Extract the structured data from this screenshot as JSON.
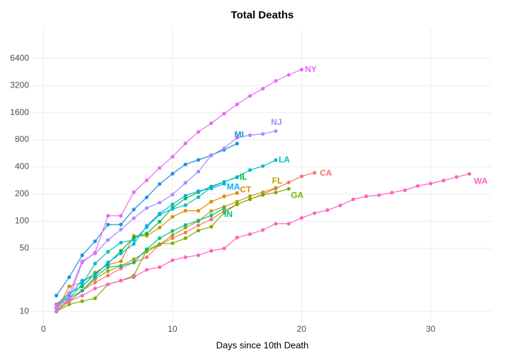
{
  "chart_data": {
    "type": "line",
    "title": "Total Deaths",
    "x_label": "Days since 10th Death",
    "log_y": true,
    "grid": true,
    "xlim": [
      -0.9,
      34.7
    ],
    "xticks": [
      0,
      10,
      20,
      30
    ],
    "ylim": [
      7.4,
      13800
    ],
    "yticks": [
      10,
      50,
      100,
      200,
      400,
      800,
      1600,
      3200,
      6400
    ],
    "series": [
      {
        "name": "CA",
        "color": "#F8766D",
        "x": [
          1,
          2,
          3,
          4,
          5,
          6,
          7,
          8,
          9,
          10,
          11,
          12,
          13,
          14,
          15,
          16,
          17,
          18,
          19,
          20,
          21
        ],
        "values": [
          11,
          13,
          17,
          21,
          25,
          30,
          35,
          40,
          55,
          65,
          75,
          90,
          105,
          130,
          155,
          175,
          200,
          230,
          270,
          315,
          345
        ]
      },
      {
        "name": "CT",
        "color": "#DE8C00",
        "x": [
          1,
          2,
          3,
          4,
          5,
          6,
          7,
          8,
          9,
          10,
          11,
          12,
          13,
          14,
          15
        ],
        "values": [
          10,
          19,
          21,
          27,
          33,
          36,
          69,
          69,
          85,
          112,
          131,
          131,
          165,
          189,
          206
        ]
      },
      {
        "name": "FL",
        "color": "#B79F00",
        "x": [
          1,
          2,
          3,
          4,
          5,
          6,
          7,
          8,
          9,
          10,
          11,
          12,
          13,
          14,
          15,
          16,
          17,
          18
        ],
        "values": [
          10,
          13,
          17,
          23,
          28,
          32,
          38,
          46,
          55,
          70,
          85,
          100,
          130,
          145,
          165,
          190,
          210,
          235
        ]
      },
      {
        "name": "GA",
        "color": "#7CAE00",
        "x": [
          1,
          2,
          3,
          4,
          5,
          6,
          7,
          8,
          9,
          10,
          11,
          12,
          13,
          14,
          15,
          16,
          17,
          18,
          19
        ],
        "values": [
          10,
          12,
          13,
          14,
          20,
          22,
          25,
          48,
          56,
          57,
          65,
          79,
          87,
          125,
          154,
          176,
          196,
          208,
          229
        ]
      },
      {
        "name": "IL",
        "color": "#00BA38",
        "x": [
          1,
          2,
          3,
          4,
          5,
          6,
          7,
          8,
          9,
          10,
          11,
          12,
          13,
          14,
          15
        ],
        "values": [
          12,
          16,
          19,
          26,
          34,
          47,
          66,
          73,
          99,
          141,
          179,
          210,
          243,
          274,
          307
        ]
      },
      {
        "name": "IN",
        "color": "#00C08B",
        "x": [
          1,
          2,
          3,
          4,
          5,
          6,
          7,
          8,
          9,
          10,
          11,
          12,
          13,
          14
        ],
        "values": [
          12,
          14,
          17,
          24,
          31,
          32,
          35,
          49,
          65,
          78,
          91,
          102,
          116,
          139
        ]
      },
      {
        "name": "LA",
        "color": "#00BFC4",
        "x": [
          1,
          2,
          3,
          4,
          5,
          6,
          7,
          8,
          9,
          10,
          11,
          12,
          13,
          14,
          15,
          16,
          17,
          18
        ],
        "values": [
          10,
          14,
          20,
          34,
          46,
          58,
          62,
          86,
          119,
          137,
          151,
          185,
          239,
          273,
          310,
          370,
          409,
          477
        ]
      },
      {
        "name": "MA",
        "color": "#00B4F0",
        "x": [
          1,
          2,
          3,
          4,
          5,
          6,
          7,
          8,
          9,
          10,
          11,
          12,
          13,
          14
        ],
        "values": [
          11,
          15,
          22,
          25,
          35,
          44,
          56,
          89,
          122,
          154,
          192,
          216,
          231,
          260
        ]
      },
      {
        "name": "MI",
        "color": "#1E90E0",
        "x": [
          1,
          2,
          3,
          4,
          5,
          6,
          7,
          8,
          9,
          10,
          11,
          12,
          13,
          14,
          15
        ],
        "values": [
          15,
          24,
          42,
          60,
          92,
          92,
          135,
          184,
          259,
          337,
          427,
          479,
          540,
          620,
          727
        ]
      },
      {
        "name": "NJ",
        "color": "#A58AFF",
        "x": [
          1,
          2,
          3,
          4,
          5,
          6,
          7,
          8,
          9,
          10,
          11,
          12,
          13,
          14,
          15,
          16,
          17,
          18
        ],
        "values": [
          11,
          16,
          36,
          44,
          62,
          81,
          108,
          140,
          161,
          198,
          267,
          355,
          537,
          646,
          846,
          900,
          930,
          1000
        ]
      },
      {
        "name": "NY",
        "color": "#E76BF3",
        "x": [
          1,
          2,
          3,
          4,
          5,
          6,
          7,
          8,
          9,
          10,
          11,
          12,
          13,
          14,
          15,
          16,
          17,
          18,
          19,
          20
        ],
        "values": [
          10,
          14,
          35,
          45,
          115,
          115,
          210,
          285,
          390,
          520,
          730,
          980,
          1220,
          1560,
          1980,
          2450,
          2950,
          3600,
          4200,
          4800
        ]
      },
      {
        "name": "WA",
        "color": "#FF62BC",
        "x": [
          1,
          2,
          3,
          4,
          5,
          6,
          7,
          8,
          9,
          10,
          11,
          12,
          13,
          14,
          15,
          16,
          17,
          18,
          19,
          20,
          21,
          22,
          23,
          24,
          25,
          26,
          27,
          28,
          29,
          30,
          31,
          32,
          33
        ],
        "values": [
          12,
          13,
          15,
          18,
          20,
          22,
          24,
          29,
          31,
          37,
          40,
          42,
          47,
          50,
          66,
          72,
          80,
          94,
          94,
          109,
          123,
          133,
          150,
          175,
          189,
          195,
          208,
          221,
          247,
          262,
          283,
          310,
          335
        ]
      }
    ]
  }
}
